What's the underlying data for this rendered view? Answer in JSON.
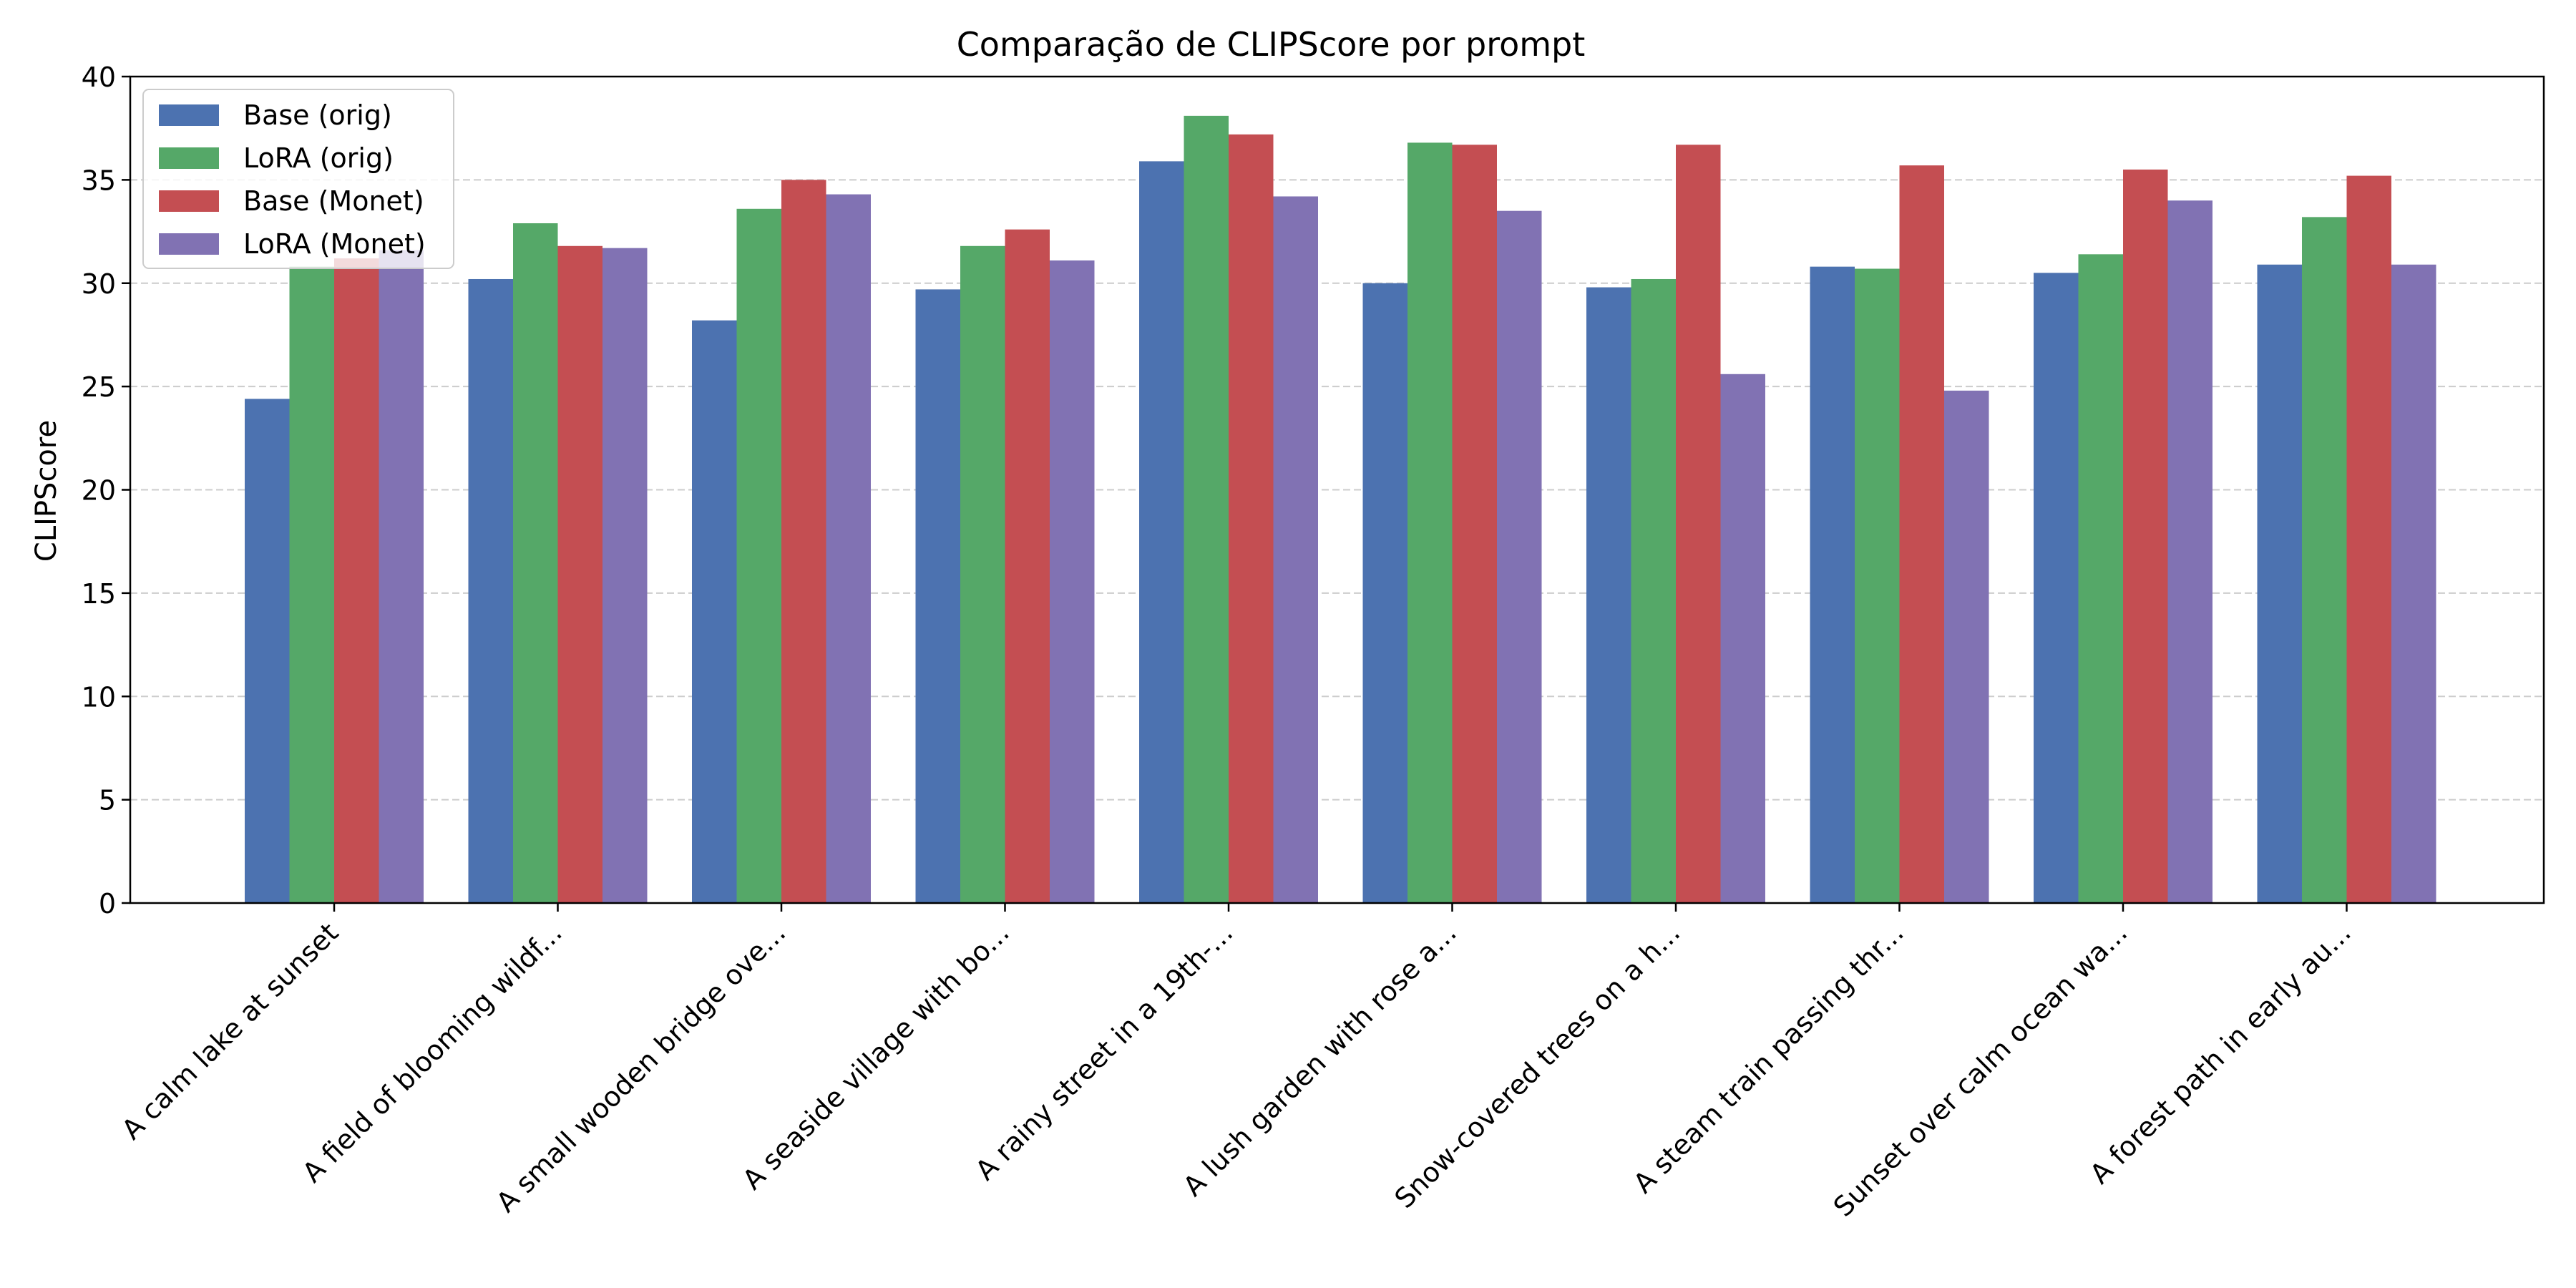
{
  "chart_data": {
    "type": "bar",
    "title": "Comparação de CLIPScore por prompt",
    "xlabel": "",
    "ylabel": "CLIPScore",
    "ylim": [
      0,
      40
    ],
    "yticks": [
      0,
      5,
      10,
      15,
      20,
      25,
      30,
      35,
      40
    ],
    "grid": "y-dashed",
    "legend_position": "top-left",
    "categories": [
      "A calm lake at sunset",
      "A field of blooming wildf...",
      "A small wooden bridge ove...",
      "A seaside village with bo...",
      "A rainy street in a 19th-...",
      "A lush garden with rose a...",
      "Snow-covered trees on a h...",
      "A steam train passing thr...",
      "Sunset over calm ocean wa...",
      "A forest path in early au..."
    ],
    "series": [
      {
        "name": "Base (orig)",
        "color": "#4c72b0",
        "values": [
          24.4,
          30.2,
          28.2,
          29.7,
          35.9,
          30.0,
          29.8,
          30.8,
          30.5,
          30.9
        ]
      },
      {
        "name": "LoRA (orig)",
        "color": "#55a868",
        "values": [
          30.8,
          32.9,
          33.6,
          31.8,
          38.1,
          36.8,
          30.2,
          30.7,
          31.4,
          33.2
        ]
      },
      {
        "name": "Base (Monet)",
        "color": "#c44e52",
        "values": [
          31.2,
          31.8,
          35.0,
          32.6,
          37.2,
          36.7,
          36.7,
          35.7,
          35.5,
          35.2
        ]
      },
      {
        "name": "LoRA (Monet)",
        "color": "#8172b3",
        "values": [
          31.6,
          31.7,
          34.3,
          31.1,
          34.2,
          33.5,
          25.6,
          24.8,
          34.0,
          30.9
        ]
      }
    ]
  }
}
